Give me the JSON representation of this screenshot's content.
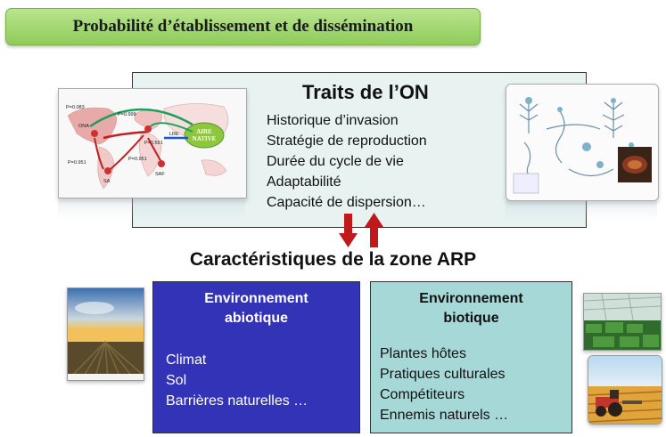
{
  "title": "Probabilité d’établissement et de dissémination",
  "traits": {
    "heading": "Traits de l’ON",
    "items": [
      "Historique d’invasion",
      "Stratégie de reproduction",
      "Durée du cycle de vie",
      "Adaptabilité",
      "Capacité de dispersion…"
    ]
  },
  "map": {
    "native_label_1": "AIRE",
    "native_label_2": "NATIVE",
    "labels": [
      "P=0.083",
      "P=0.999",
      "P=0.951",
      "P=0.591",
      "P=0.951",
      "ONA",
      "BA",
      "SA",
      "SAF",
      "LRE"
    ]
  },
  "zone_heading": "Caractéristiques de la zone ARP",
  "abiotic": {
    "heading_line1": "Environnement",
    "heading_line2": "abiotique",
    "items": [
      "Climat",
      "Sol",
      "Barrières naturelles …"
    ],
    "color": "#3333b8"
  },
  "biotic": {
    "heading_line1": "Environnement",
    "heading_line2": "biotique",
    "items": [
      "Plantes hôtes",
      "Pratiques  culturales",
      "Compétiteurs",
      "Ennemis naturels …"
    ],
    "color": "#a7d8d8"
  },
  "arrows": {
    "down_color": "#c0181b",
    "up_color": "#c0181b"
  }
}
